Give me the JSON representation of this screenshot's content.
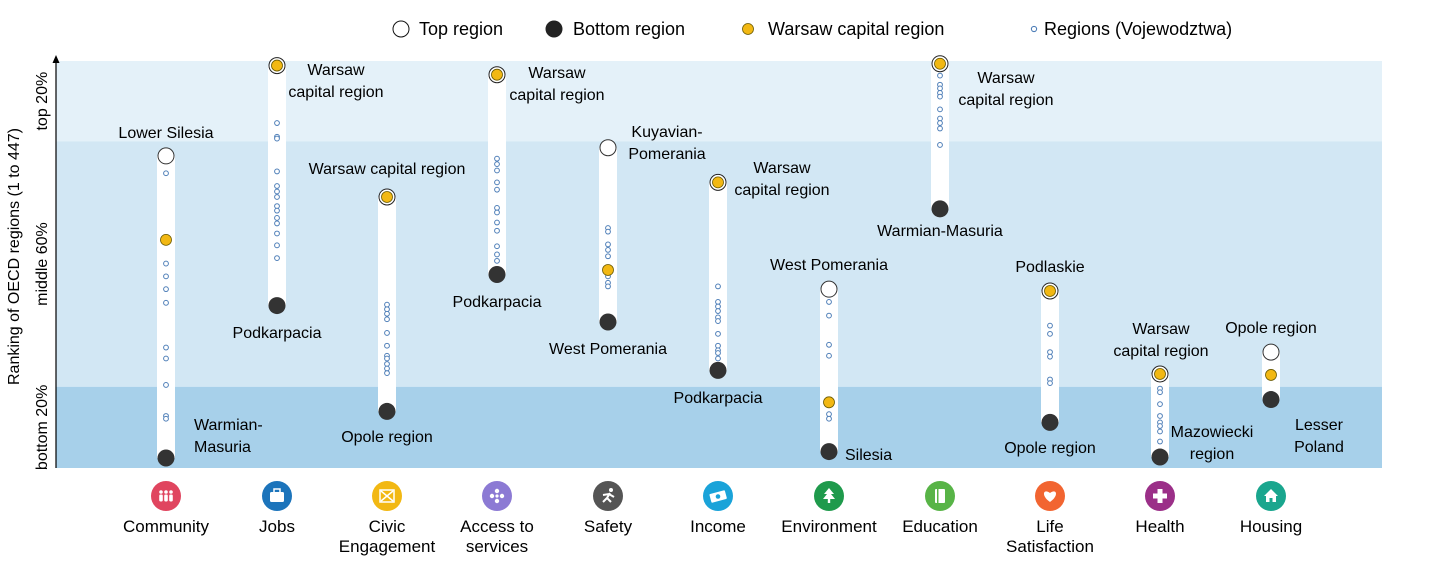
{
  "chart_data": {
    "type": "scatter",
    "legend": {
      "placement": "top",
      "items": [
        {
          "key": "top",
          "label": "Top region"
        },
        {
          "key": "bottom",
          "label": "Bottom region"
        },
        {
          "key": "capital",
          "label": "Warsaw capital region"
        },
        {
          "key": "regions",
          "label": "Regions (Vojewodztwa)"
        }
      ]
    },
    "ylabel": "Ranking of OECD regions (1 to 447)",
    "bands": [
      {
        "label": "top 20%",
        "from": 1,
        "to": 89,
        "color": "#e4f1f9"
      },
      {
        "label": "middle 60%",
        "from": 89,
        "to": 358,
        "color": "#d2e7f4"
      },
      {
        "label": "bottom 20%",
        "from": 358,
        "to": 447,
        "color": "#a7d0ea"
      }
    ],
    "ylim": [
      1,
      447
    ],
    "grid": false,
    "colors": {
      "top": "#ffffff",
      "bottom": "#333333",
      "capital": "#f2b813",
      "regions": "#4f7fb8",
      "column": "#ffffff"
    },
    "categories": [
      {
        "name": "Community",
        "icon": "people-icon",
        "color": "#e0455f",
        "top": {
          "rank": 105,
          "label": "Lower Silesia"
        },
        "bottom": {
          "rank": 436,
          "label": "Warmian-Masuria"
        },
        "capital": {
          "rank": 197
        },
        "regions": [
          124,
          223,
          237,
          251,
          266,
          315,
          327,
          356,
          390,
          393
        ]
      },
      {
        "name": "Jobs",
        "icon": "briefcase-icon",
        "color": "#1c74bb",
        "top": {
          "rank": 6,
          "label": "Warsaw capital region"
        },
        "bottom": {
          "rank": 269,
          "label": "Podkarpacia"
        },
        "capital": {
          "rank": 6
        },
        "regions": [
          69,
          84,
          86,
          122,
          138,
          144,
          150,
          160,
          165,
          173,
          179,
          190,
          203,
          217
        ]
      },
      {
        "name": "Civic Engagement",
        "icon": "ballot-icon",
        "color": "#f2b813",
        "top": {
          "rank": 150,
          "label": "Warsaw capital region"
        },
        "bottom": {
          "rank": 385,
          "label": "Opole region"
        },
        "capital": {
          "rank": 150
        },
        "regions": [
          268,
          273,
          278,
          284,
          299,
          313,
          324,
          327,
          333,
          338,
          343
        ]
      },
      {
        "name": "Access to services",
        "icon": "network-icon",
        "color": "#8c7ad4",
        "top": {
          "rank": 16,
          "label": "Warsaw capital region"
        },
        "bottom": {
          "rank": 235,
          "label": "Podkarpacia"
        },
        "capital": {
          "rank": 16
        },
        "regions": [
          108,
          114,
          121,
          134,
          142,
          162,
          167,
          178,
          187,
          204,
          213,
          220
        ]
      },
      {
        "name": "Safety",
        "icon": "runner-icon",
        "color": "#555555",
        "top": {
          "rank": 96,
          "label": "Kuyavian-Pomerania"
        },
        "bottom": {
          "rank": 287,
          "label": "West Pomerania"
        },
        "capital": {
          "rank": 230
        },
        "regions": [
          184,
          188,
          202,
          208,
          215,
          237,
          244,
          248
        ]
      },
      {
        "name": "Income",
        "icon": "banknote-icon",
        "color": "#1aa3d9",
        "top": {
          "rank": 134,
          "label": "Warsaw capital region"
        },
        "bottom": {
          "rank": 340,
          "label": "Podkarpacia"
        },
        "capital": {
          "rank": 134
        },
        "regions": [
          248,
          265,
          270,
          275,
          282,
          286,
          300,
          313,
          318,
          321,
          327
        ]
      },
      {
        "name": "Environment",
        "icon": "tree-icon",
        "color": "#1f9a4c",
        "top": {
          "rank": 251,
          "label": "West Pomerania"
        },
        "bottom": {
          "rank": 429,
          "label": "Silesia"
        },
        "capital": {
          "rank": 375
        },
        "regions": [
          265,
          280,
          312,
          324,
          388,
          393
        ]
      },
      {
        "name": "Education",
        "icon": "book-icon",
        "color": "#58b447",
        "top": {
          "rank": 4,
          "label": "Warsaw capital region"
        },
        "bottom": {
          "rank": 163,
          "label": "Warmian-Masuria"
        },
        "capital": {
          "rank": 4
        },
        "regions": [
          17,
          27,
          31,
          36,
          40,
          54,
          64,
          69,
          75,
          93
        ]
      },
      {
        "name": "Life Satisfaction",
        "icon": "heart-icon",
        "color": "#f26531",
        "top": {
          "rank": 253,
          "label": "Podlaskie"
        },
        "bottom": {
          "rank": 397,
          "label": "Opole region"
        },
        "capital": {
          "rank": 253
        },
        "regions": [
          291,
          300,
          320,
          325,
          350,
          354
        ]
      },
      {
        "name": "Health",
        "icon": "cross-icon",
        "color": "#9b2f88",
        "top": {
          "rank": 344,
          "label": "Warsaw capital region"
        },
        "bottom": {
          "rank": 435,
          "label": "Mazowiecki region"
        },
        "capital": {
          "rank": 344
        },
        "regions": [
          360,
          364,
          377,
          390,
          397,
          401,
          407,
          418
        ]
      },
      {
        "name": "Housing",
        "icon": "house-icon",
        "color": "#1aa68e",
        "top": {
          "rank": 320,
          "label": "Opole region"
        },
        "bottom": {
          "rank": 372,
          "label": "Lesser Poland"
        },
        "capital": {
          "rank": 345
        },
        "regions": []
      }
    ]
  }
}
